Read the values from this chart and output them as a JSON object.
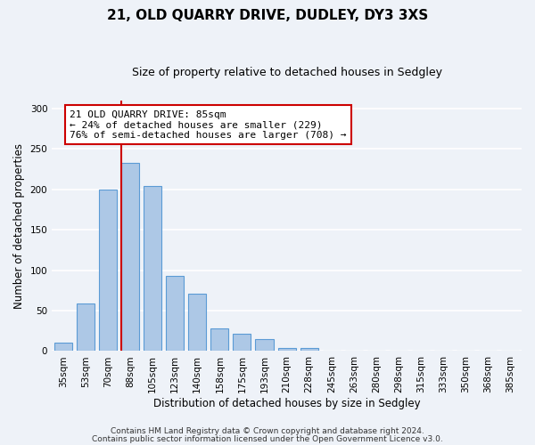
{
  "title": "21, OLD QUARRY DRIVE, DUDLEY, DY3 3XS",
  "subtitle": "Size of property relative to detached houses in Sedgley",
  "xlabel": "Distribution of detached houses by size in Sedgley",
  "ylabel": "Number of detached properties",
  "bar_labels": [
    "35sqm",
    "53sqm",
    "70sqm",
    "88sqm",
    "105sqm",
    "123sqm",
    "140sqm",
    "158sqm",
    "175sqm",
    "193sqm",
    "210sqm",
    "228sqm",
    "245sqm",
    "263sqm",
    "280sqm",
    "298sqm",
    "315sqm",
    "333sqm",
    "350sqm",
    "368sqm",
    "385sqm"
  ],
  "bar_values": [
    10,
    59,
    200,
    233,
    204,
    93,
    71,
    28,
    21,
    15,
    4,
    4,
    0,
    0,
    0,
    0,
    1,
    0,
    0,
    0,
    1
  ],
  "bar_color": "#adc8e6",
  "bar_edge_color": "#5b9bd5",
  "ylim": [
    0,
    310
  ],
  "yticks": [
    0,
    50,
    100,
    150,
    200,
    250,
    300
  ],
  "vline_index": 3,
  "vline_color": "#cc0000",
  "annotation_title": "21 OLD QUARRY DRIVE: 85sqm",
  "annotation_line1": "← 24% of detached houses are smaller (229)",
  "annotation_line2": "76% of semi-detached houses are larger (708) →",
  "annotation_box_color": "#ffffff",
  "annotation_box_edge": "#cc0000",
  "footer_line1": "Contains HM Land Registry data © Crown copyright and database right 2024.",
  "footer_line2": "Contains public sector information licensed under the Open Government Licence v3.0.",
  "background_color": "#eef2f8",
  "grid_color": "#ffffff",
  "title_fontsize": 11,
  "subtitle_fontsize": 9,
  "axis_label_fontsize": 8.5,
  "tick_fontsize": 7.5,
  "annotation_fontsize": 8,
  "footer_fontsize": 6.5
}
